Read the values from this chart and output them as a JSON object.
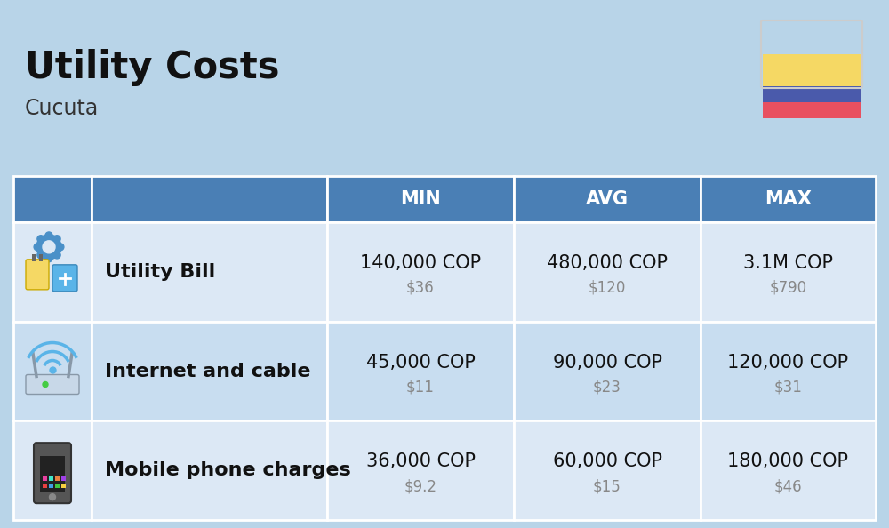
{
  "title": "Utility Costs",
  "subtitle": "Cucuta",
  "background_color": "#b8d4e8",
  "header_bg_color": "#4a7fb5",
  "header_text_color": "#ffffff",
  "row_bg_colors": [
    "#dce8f5",
    "#c8ddf0"
  ],
  "border_color": "#ffffff",
  "col_headers": [
    "MIN",
    "AVG",
    "MAX"
  ],
  "rows": [
    {
      "label": "Utility Bill",
      "min_cop": "140,000 COP",
      "min_usd": "$36",
      "avg_cop": "480,000 COP",
      "avg_usd": "$120",
      "max_cop": "3.1M COP",
      "max_usd": "$790",
      "icon": "utility"
    },
    {
      "label": "Internet and cable",
      "min_cop": "45,000 COP",
      "min_usd": "$11",
      "avg_cop": "90,000 COP",
      "avg_usd": "$23",
      "max_cop": "120,000 COP",
      "max_usd": "$31",
      "icon": "internet"
    },
    {
      "label": "Mobile phone charges",
      "min_cop": "36,000 COP",
      "min_usd": "$9.2",
      "avg_cop": "60,000 COP",
      "avg_usd": "$15",
      "max_cop": "180,000 COP",
      "max_usd": "$46",
      "icon": "mobile"
    }
  ],
  "flag_colors": [
    "#f5d864",
    "#4a5aab",
    "#e85060"
  ],
  "title_fontsize": 30,
  "subtitle_fontsize": 17,
  "header_fontsize": 15,
  "cop_fontsize": 15,
  "usd_fontsize": 12,
  "label_fontsize": 16
}
